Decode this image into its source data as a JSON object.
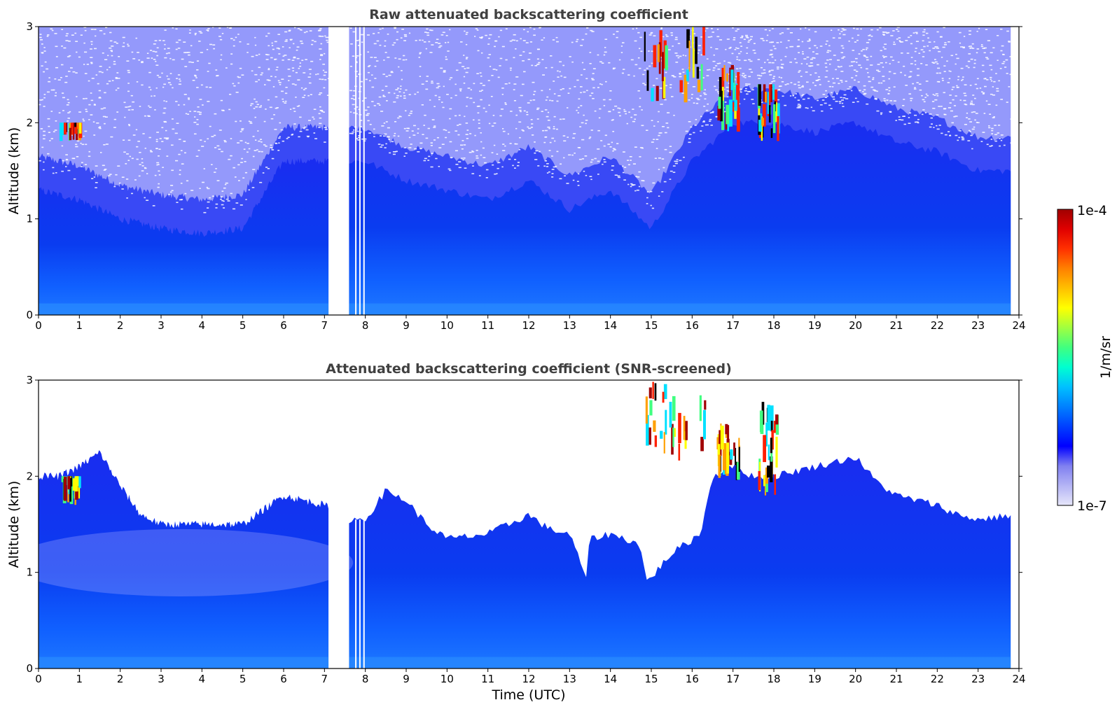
{
  "chart_data": [
    {
      "type": "heatmap",
      "title": "Raw attenuated backscattering coefficient",
      "xlabel": "",
      "ylabel": "Altitude (km)",
      "xlim": [
        0,
        24
      ],
      "ylim": [
        0,
        3
      ],
      "xticks": [
        "0",
        "1",
        "2",
        "3",
        "4",
        "5",
        "6",
        "7",
        "8",
        "9",
        "10",
        "11",
        "12",
        "13",
        "14",
        "15",
        "16",
        "17",
        "18",
        "19",
        "20",
        "21",
        "22",
        "23",
        "24"
      ],
      "yticks": [
        "0",
        "1",
        "2",
        "3"
      ],
      "data_gap_utc": [
        7.1,
        7.6
      ],
      "mixed_layer_top_km": [
        [
          0,
          1.3
        ],
        [
          1,
          1.2
        ],
        [
          2,
          1.0
        ],
        [
          3,
          0.9
        ],
        [
          4,
          0.85
        ],
        [
          5,
          0.9
        ],
        [
          6,
          1.6
        ],
        [
          7,
          1.6
        ],
        [
          8,
          1.6
        ],
        [
          9,
          1.4
        ],
        [
          10,
          1.3
        ],
        [
          11,
          1.2
        ],
        [
          12,
          1.4
        ],
        [
          13,
          1.1
        ],
        [
          14,
          1.3
        ],
        [
          15,
          0.9
        ],
        [
          16,
          1.6
        ],
        [
          17,
          2.0
        ],
        [
          18,
          2.0
        ],
        [
          19,
          1.9
        ],
        [
          20,
          2.0
        ],
        [
          21,
          1.8
        ],
        [
          22,
          1.7
        ],
        [
          23,
          1.5
        ],
        [
          24,
          1.5
        ]
      ],
      "high_signal_features": [
        {
          "time_utc": [
            0.5,
            1.0
          ],
          "altitude_km": [
            1.8,
            2.0
          ]
        },
        {
          "time_utc": [
            14.8,
            16.3
          ],
          "altitude_km": [
            2.2,
            3.0
          ]
        },
        {
          "time_utc": [
            16.6,
            17.2
          ],
          "altitude_km": [
            1.9,
            2.6
          ]
        },
        {
          "time_utc": [
            17.6,
            18.1
          ],
          "altitude_km": [
            1.8,
            2.4
          ]
        }
      ]
    },
    {
      "type": "heatmap",
      "title": "Attenuated backscattering coefficient (SNR-screened)",
      "xlabel": "Time (UTC)",
      "ylabel": "Altitude (km)",
      "xlim": [
        0,
        24
      ],
      "ylim": [
        0,
        3
      ],
      "xticks": [
        "0",
        "1",
        "2",
        "3",
        "4",
        "5",
        "6",
        "7",
        "8",
        "9",
        "10",
        "11",
        "12",
        "13",
        "14",
        "15",
        "16",
        "17",
        "18",
        "19",
        "20",
        "21",
        "22",
        "23",
        "24"
      ],
      "yticks": [
        "0",
        "1",
        "2",
        "3"
      ],
      "data_gap_utc": [
        7.1,
        7.6
      ],
      "signal_top_km": [
        [
          0,
          2.0
        ],
        [
          0.5,
          2.0
        ],
        [
          1,
          2.1
        ],
        [
          1.5,
          2.25
        ],
        [
          2,
          1.9
        ],
        [
          2.5,
          1.6
        ],
        [
          3,
          1.5
        ],
        [
          4,
          1.5
        ],
        [
          5,
          1.5
        ],
        [
          6,
          1.8
        ],
        [
          7,
          1.7
        ],
        [
          7.6,
          1.55
        ],
        [
          8,
          1.55
        ],
        [
          8.5,
          1.85
        ],
        [
          9,
          1.75
        ],
        [
          9.5,
          1.5
        ],
        [
          10,
          1.35
        ],
        [
          11,
          1.4
        ],
        [
          12,
          1.6
        ],
        [
          12.5,
          1.45
        ],
        [
          13,
          1.4
        ],
        [
          13.4,
          0.95
        ],
        [
          13.5,
          1.35
        ],
        [
          14,
          1.4
        ],
        [
          14.7,
          1.3
        ],
        [
          14.9,
          0.9
        ],
        [
          15.5,
          1.2
        ],
        [
          16.2,
          1.4
        ],
        [
          16.5,
          2.0
        ],
        [
          17,
          2.1
        ],
        [
          17.5,
          2.0
        ],
        [
          18,
          2.0
        ],
        [
          19,
          2.1
        ],
        [
          20,
          2.2
        ],
        [
          20.5,
          1.95
        ],
        [
          21,
          1.8
        ],
        [
          21.5,
          1.75
        ],
        [
          22,
          1.7
        ],
        [
          22.5,
          1.6
        ],
        [
          23,
          1.55
        ],
        [
          23.9,
          1.6
        ]
      ],
      "high_signal_features": [
        {
          "time_utc": [
            0.5,
            1.0
          ],
          "altitude_km": [
            1.7,
            2.0
          ]
        },
        {
          "time_utc": [
            14.8,
            16.3
          ],
          "altitude_km": [
            2.1,
            3.0
          ]
        },
        {
          "time_utc": [
            16.6,
            17.2
          ],
          "altitude_km": [
            1.9,
            2.6
          ]
        },
        {
          "time_utc": [
            17.6,
            18.1
          ],
          "altitude_km": [
            1.8,
            2.8
          ]
        }
      ]
    }
  ],
  "colorbar": {
    "label": "1/m/sr",
    "max_label": "1e-4",
    "min_label": "1e-7",
    "colors": [
      "#e6e6fa",
      "#b4b4f5",
      "#8080f0",
      "#0000ff",
      "#0040ff",
      "#0080ff",
      "#00c0ff",
      "#00ffd0",
      "#40ff80",
      "#a0ff40",
      "#ffff00",
      "#ffc000",
      "#ff8000",
      "#ff3000",
      "#e00000",
      "#a00000"
    ]
  }
}
